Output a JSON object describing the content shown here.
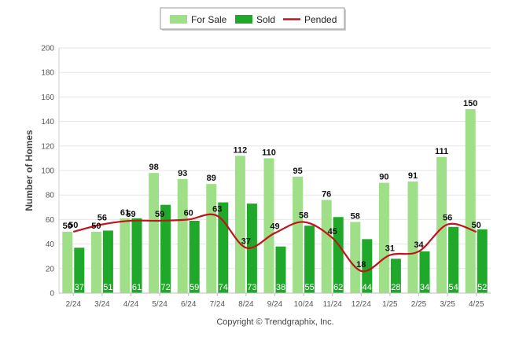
{
  "chart_data": {
    "type": "bar",
    "title": "",
    "xlabel": "",
    "ylabel": "Number of Homes",
    "ylim": [
      0,
      200
    ],
    "yticks": [
      0,
      20,
      40,
      60,
      80,
      100,
      120,
      140,
      160,
      180,
      200
    ],
    "grid": true,
    "legend_position": "top-center",
    "categories": [
      "2/24",
      "3/24",
      "4/24",
      "5/24",
      "6/24",
      "7/24",
      "8/24",
      "9/24",
      "10/24",
      "11/24",
      "12/24",
      "1/25",
      "2/25",
      "3/25",
      "4/25"
    ],
    "series": [
      {
        "name": "For Sale",
        "kind": "bar",
        "color": "#9fdf87",
        "values": [
          50,
          50,
          61,
          98,
          93,
          89,
          112,
          110,
          95,
          76,
          58,
          90,
          91,
          111,
          150
        ]
      },
      {
        "name": "Sold",
        "kind": "bar",
        "color": "#1fa82a",
        "values": [
          37,
          51,
          61,
          72,
          59,
          74,
          73,
          38,
          55,
          62,
          44,
          28,
          34,
          54,
          52
        ]
      },
      {
        "name": "Pended",
        "kind": "line",
        "color": "#c0141c",
        "values": [
          50,
          56,
          59,
          59,
          60,
          63,
          37,
          49,
          58,
          45,
          18,
          31,
          34,
          56,
          50
        ]
      }
    ]
  },
  "footer": {
    "copyright": "Copyright © Trendgraphix, Inc."
  }
}
